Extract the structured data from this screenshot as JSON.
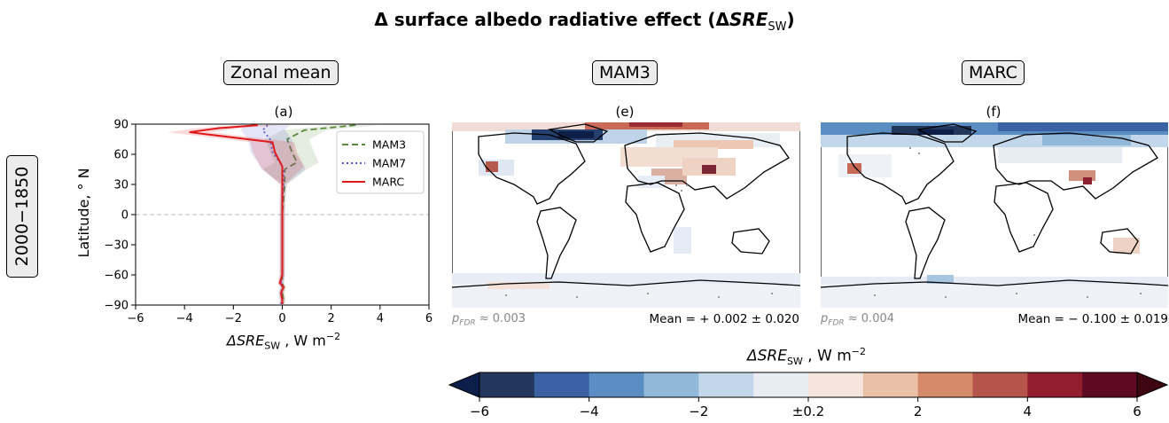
{
  "title_prefix": "Δ surface albedo radiative effect (Δ",
  "title_var": "SRE",
  "title_sub": "SW",
  "title_suffix": ")",
  "row_label": "2000−1850",
  "columns": {
    "zonal": {
      "header": "Zonal mean",
      "tag": "(a)"
    },
    "mam3": {
      "header": "MAM3",
      "tag": "(e)",
      "p_label": "p",
      "p_sub": "FDR",
      "p_value": "≈ 0.003",
      "mean_label": "Mean = + 0.002 ± 0.020"
    },
    "marc": {
      "header": "MARC",
      "tag": "(f)",
      "p_label": "p",
      "p_sub": "FDR",
      "p_value": "≈ 0.004",
      "mean_label": "Mean = − 0.100 ± 0.019"
    }
  },
  "colors": {
    "MAM3": "#5b8a3c",
    "MAM7": "#5b5bd6",
    "MARC": "#e0191b"
  },
  "chart_data": [
    {
      "type": "line",
      "title": "(a)",
      "xlabel_var": "ΔSRE",
      "xlabel_sub": "SW",
      "xlabel_unit": " , W m",
      "xlabel_exp": "−2",
      "ylabel": "Latitude, ° N",
      "xlim": [
        -6,
        6
      ],
      "ylim": [
        -90,
        90
      ],
      "xticks": [
        -6,
        -4,
        -2,
        0,
        2,
        4,
        6
      ],
      "xtick_labels": [
        "−6",
        "−4",
        "−2",
        "0",
        "2",
        "4",
        "6"
      ],
      "yticks": [
        90,
        60,
        30,
        0,
        -30,
        -60,
        -90
      ],
      "ytick_labels": [
        "90",
        "60",
        "30",
        "0",
        "−30",
        "−60",
        "−90"
      ],
      "legend_position": "upper-right",
      "series": [
        {
          "name": "MAM3",
          "style": "dashed",
          "x": [
            3.0,
            0.9,
            0.2,
            0.4,
            0.6,
            0.1,
            0.1,
            0.05,
            0.0,
            0.0,
            0.0,
            0.0,
            0.0,
            0.0,
            0.05,
            0.0,
            0.05,
            0.0
          ],
          "y": [
            89,
            84,
            75,
            62,
            52,
            45,
            30,
            15,
            0,
            -15,
            -30,
            -45,
            -60,
            -68,
            -72,
            -78,
            -85,
            -89
          ]
        },
        {
          "name": "MAM7",
          "style": "dotted",
          "x": [
            -0.6,
            -0.8,
            -0.5,
            -0.4,
            -0.1,
            0.05,
            0.05,
            0.0,
            0.0,
            0.0,
            0.0,
            0.0,
            0.0,
            -0.05,
            0.0,
            -0.05,
            0.0,
            -0.05
          ],
          "y": [
            89,
            84,
            75,
            62,
            52,
            45,
            30,
            15,
            0,
            -15,
            -30,
            -45,
            -60,
            -68,
            -72,
            -78,
            -85,
            -89
          ]
        },
        {
          "name": "MARC",
          "style": "solid",
          "x": [
            -1.0,
            -2.6,
            -3.8,
            -0.4,
            -0.3,
            0.0,
            0.0,
            0.0,
            0.0,
            0.0,
            0.0,
            0.0,
            0.0,
            -0.1,
            0.05,
            -0.05,
            0.0,
            0.0
          ],
          "y": [
            89,
            86,
            82,
            72,
            62,
            48,
            30,
            15,
            0,
            -15,
            -30,
            -45,
            -60,
            -68,
            -72,
            -78,
            -85,
            -89
          ]
        }
      ]
    },
    {
      "type": "colorbar",
      "title_var": "ΔSRE",
      "title_sub": "SW",
      "title_unit": " , W m",
      "title_exp": "−2",
      "tick_labels": [
        "−6",
        "−4",
        "−2",
        "±0.2",
        "2",
        "4",
        "6"
      ],
      "colors": [
        "#23375c",
        "#3b62a5",
        "#5a8ec3",
        "#92b8d9",
        "#c2d7ea",
        "#e8ecf3",
        "#f5e5dd",
        "#eac0a6",
        "#d58a69",
        "#b5544a",
        "#921e2d",
        "#5e0a23"
      ],
      "extend_low": "#0c1f4a",
      "extend_high": "#3d0611"
    }
  ]
}
